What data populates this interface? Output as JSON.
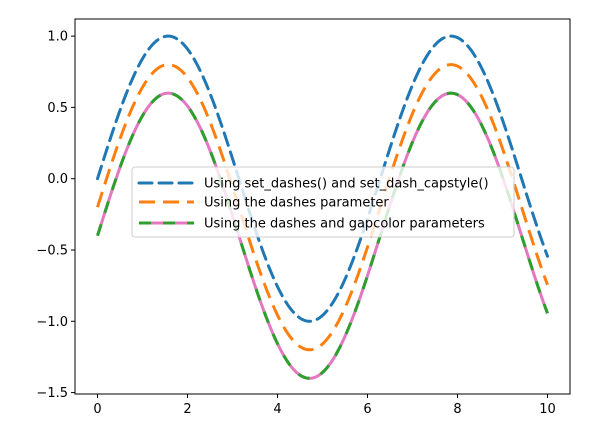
{
  "chart_data": {
    "type": "line",
    "title": "",
    "xlabel": "",
    "ylabel": "",
    "xlim": [
      -0.5,
      10.5
    ],
    "ylim": [
      -1.51,
      1.12
    ],
    "x_ticks": [
      0,
      2,
      4,
      6,
      8,
      10
    ],
    "y_ticks": [
      -1.5,
      -1.0,
      -0.5,
      0.0,
      0.5,
      1.0
    ],
    "x_tick_labels": [
      "0",
      "2",
      "4",
      "6",
      "8",
      "10"
    ],
    "y_tick_labels": [
      "−1.5",
      "−1.0",
      "−0.5",
      "0.0",
      "0.5",
      "1.0"
    ],
    "grid": false,
    "legend_position": "center-left",
    "x_range": [
      0,
      10
    ],
    "series": [
      {
        "name": "Using set_dashes() and set_dash_capstyle()",
        "function": "sin(x)",
        "offset": 0.0,
        "color": "#1f77b4",
        "style": "dashed, round caps"
      },
      {
        "name": "Using the dashes parameter",
        "function": "sin(x)",
        "offset": -0.2,
        "color": "#ff7f0e",
        "style": "dashed"
      },
      {
        "name": "Using the dashes and gapcolor parameters",
        "function": "sin(x)",
        "offset": -0.4,
        "color": "#2ca02c",
        "gapcolor": "#e377c2",
        "style": "dashed with gap color"
      }
    ]
  }
}
